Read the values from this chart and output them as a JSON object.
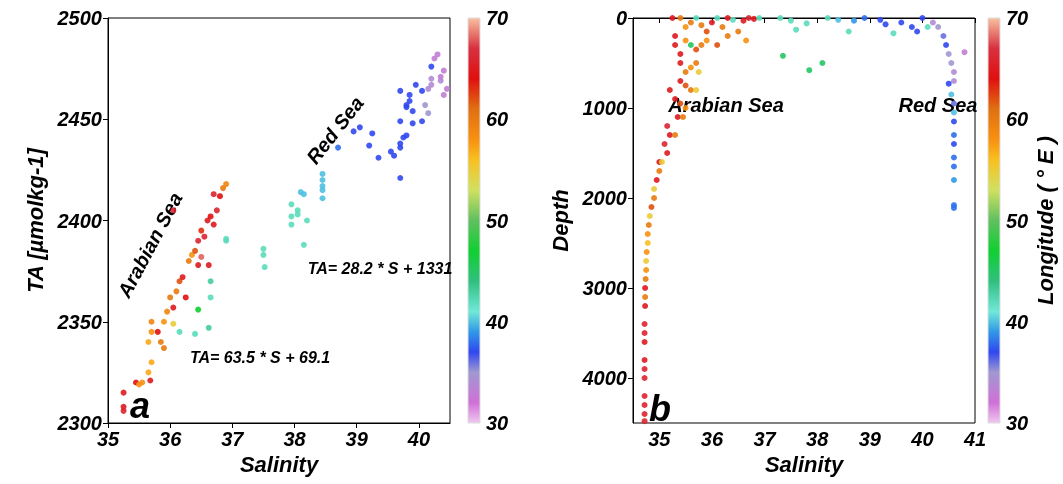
{
  "chart_data": [
    {
      "type": "scatter",
      "xlabel": "Salinity",
      "ylabel": "TA [µmolkg-1]",
      "xlim": [
        35,
        40.5
      ],
      "xticks": [
        35,
        36,
        37,
        38,
        39,
        40
      ],
      "ylim": [
        2300,
        2500
      ],
      "yticks": [
        2300,
        2350,
        2400,
        2450,
        2500
      ],
      "clim": [
        30,
        70
      ],
      "cticks": [
        30,
        40,
        50,
        60,
        70
      ],
      "marker": "circle",
      "annotations": [
        "Arabian Sea",
        "Red Sea",
        "TA= 28.2 * S + 1331",
        "TA= 63.5 * S + 69.1",
        "a"
      ],
      "series": [
        {
          "x": [
            35.25,
            35.25,
            35.25,
            35.45,
            35.5,
            35.55,
            35.65,
            35.7,
            35.68,
            35.65,
            35.7,
            35.7,
            35.8,
            35.85,
            35.9,
            35.95,
            35.9,
            36.0,
            36.05,
            36.1,
            36.15,
            36.2,
            36.25,
            36.3,
            36.35,
            36.4,
            36.45,
            36.45,
            36.5,
            36.55,
            36.6,
            36.65,
            36.7,
            36.75,
            36.8,
            36.85,
            36.9,
            36.7,
            36.62,
            36.05,
            36.5,
            36.9,
            36.9,
            36.65,
            36.65,
            36.62,
            36.4,
            36.15,
            36.45,
            36.05,
            37.5,
            37.5,
            37.52,
            37.95,
            37.95,
            37.95,
            38.05,
            38.05,
            38.15,
            38.2,
            38.1,
            38.15,
            38.45,
            38.45,
            38.45,
            38.45,
            38.45,
            38.7,
            38.95,
            39.05,
            39.2,
            39.25,
            39.35,
            39.55,
            39.6,
            39.7,
            39.7,
            39.7,
            39.7,
            39.7,
            39.75,
            39.8,
            39.8,
            39.8,
            39.85,
            39.85,
            39.9,
            39.9,
            39.95,
            40.05,
            40.05,
            40.1,
            40.15,
            40.15,
            40.2,
            40.2,
            40.2,
            40.25,
            40.3,
            40.35,
            40.35,
            40.4,
            40.4,
            40.45
          ],
          "values": [
            2315,
            2308,
            2306,
            2320,
            2319,
            2320,
            2325,
            2330,
            2321,
            2340,
            2345,
            2350,
            2345,
            2340,
            2350,
            2355,
            2337,
            2362,
            2357,
            2365,
            2370,
            2372,
            2362,
            2380,
            2383,
            2385,
            2378,
            2390,
            2395,
            2392,
            2400,
            2402,
            2398,
            2405,
            2412,
            2416,
            2418,
            2413,
            2378,
            2405,
            2382,
            2390,
            2391,
            2370,
            2362,
            2347,
            2344,
            2345,
            2356,
            2349,
            2386,
            2383,
            2377,
            2408,
            2402,
            2398,
            2405,
            2403,
            2388,
            2400,
            2414,
            2413,
            2423,
            2420,
            2415,
            2417,
            2411,
            2436,
            2444,
            2446,
            2437,
            2443,
            2431,
            2434,
            2432,
            2421,
            2436,
            2438,
            2449,
            2464,
            2441,
            2442,
            2456,
            2457,
            2459,
            2462,
            2454,
            2448,
            2467,
            2449,
            2464,
            2457,
            2453,
            2465,
            2467,
            2470,
            2476,
            2480,
            2482,
            2469,
            2471,
            2474,
            2462,
            2465
          ],
          "cvalues": [
            65,
            65,
            66,
            64,
            58,
            58,
            57,
            57,
            65,
            57,
            58,
            59,
            64,
            60,
            58,
            59,
            60,
            60,
            65,
            60,
            62,
            65,
            64,
            60,
            58,
            62,
            65,
            66,
            63,
            66,
            65,
            64,
            65,
            66,
            64,
            60,
            59,
            66,
            65,
            66,
            68,
            42,
            42,
            43,
            42,
            43,
            42,
            42,
            47,
            55,
            42,
            42,
            42,
            42,
            42,
            42,
            42,
            42,
            42,
            42,
            40,
            40,
            40,
            40,
            40,
            40,
            40,
            38,
            37,
            37,
            37,
            37,
            37,
            37,
            37,
            37,
            37,
            37,
            37,
            37,
            37,
            37,
            37,
            37,
            37,
            37,
            37,
            37,
            37,
            37,
            37,
            35,
            35,
            34,
            34,
            34,
            37,
            33,
            33,
            34,
            33,
            33,
            33,
            33
          ]
        }
      ]
    },
    {
      "type": "scatter",
      "xlabel": "Salinity",
      "ylabel": "Depth",
      "clabel": "Longitude ( ° E )",
      "xlim": [
        34.5,
        41
      ],
      "xticks": [
        35,
        36,
        37,
        38,
        39,
        40,
        41
      ],
      "ylim": [
        4500,
        0
      ],
      "yticks": [
        0,
        1000,
        2000,
        3000,
        4000
      ],
      "clim": [
        30,
        70
      ],
      "cticks": [
        30,
        40,
        50,
        60,
        70
      ],
      "marker": "circle",
      "annotations": [
        "Arabian Sea",
        "Red Sea",
        "b"
      ],
      "series": [
        {
          "x": [
            35.25,
            35.4,
            35.5,
            35.6,
            35.7,
            35.8,
            35.9,
            36.0,
            36.1,
            36.2,
            36.3,
            36.4,
            36.5,
            36.6,
            36.7,
            36.8,
            36.9,
            35.3,
            35.3,
            35.4,
            35.5,
            35.6,
            35.7,
            35.8,
            35.9,
            36.1,
            36.3,
            36.65,
            35.4,
            35.5,
            35.6,
            35.7,
            35.75,
            35.4,
            35.5,
            35.6,
            35.7,
            35.2,
            35.3,
            35.4,
            35.5,
            35.35,
            35.45,
            35.15,
            35.2,
            35.3,
            35.1,
            35.15,
            35.0,
            35.05,
            35.0,
            34.95,
            34.9,
            34.9,
            34.85,
            34.82,
            34.8,
            34.78,
            34.78,
            34.76,
            34.75,
            34.75,
            34.74,
            34.73,
            34.73,
            34.73,
            34.72,
            34.72,
            34.72,
            34.72,
            34.72,
            34.72,
            34.72,
            34.72,
            34.72,
            34.72,
            37.3,
            37.5,
            37.6,
            37.8,
            37.35,
            37.85,
            38.1,
            38.2,
            38.4,
            38.6,
            38.7,
            38.9,
            39.2,
            39.3,
            39.45,
            39.6,
            39.8,
            39.9,
            40.0,
            40.1,
            40.2,
            40.3,
            40.4,
            40.45,
            40.5,
            40.55,
            40.6,
            40.6,
            40.5,
            40.55,
            40.6,
            40.6,
            40.6,
            40.6,
            40.6,
            40.6,
            40.6,
            40.6,
            40.6,
            40.6,
            40.8
          ],
          "values": [
            0,
            0,
            100,
            50,
            0,
            80,
            150,
            50,
            0,
            100,
            0,
            20,
            150,
            30,
            0,
            10,
            0,
            200,
            300,
            400,
            250,
            300,
            350,
            300,
            250,
            300,
            200,
            250,
            500,
            600,
            550,
            500,
            600,
            700,
            750,
            800,
            800,
            800,
            900,
            950,
            1000,
            1100,
            1100,
            1200,
            1300,
            1300,
            1400,
            1500,
            1600,
            1600,
            1700,
            1800,
            1900,
            2000,
            2100,
            2200,
            2300,
            2400,
            2500,
            2600,
            2700,
            2800,
            2900,
            3000,
            3100,
            3200,
            3400,
            3500,
            3600,
            3800,
            3900,
            4000,
            4200,
            4300,
            4400,
            4480,
            0,
            30,
            130,
            60,
            420,
            580,
            500,
            0,
            20,
            150,
            30,
            0,
            20,
            70,
            170,
            50,
            100,
            150,
            0,
            100,
            50,
            100,
            200,
            300,
            400,
            500,
            600,
            700,
            730,
            850,
            950,
            1050,
            1150,
            1300,
            1400,
            1550,
            1650,
            1800,
            2080,
            2110,
            380
          ],
          "cvalues": [
            65,
            60,
            58,
            60,
            42,
            60,
            62,
            65,
            42,
            60,
            65,
            42,
            60,
            65,
            66,
            65,
            42,
            65,
            65,
            65,
            58,
            45,
            62,
            60,
            58,
            62,
            60,
            58,
            65,
            60,
            58,
            60,
            55,
            65,
            62,
            60,
            55,
            65,
            65,
            62,
            58,
            65,
            60,
            66,
            65,
            60,
            66,
            65,
            65,
            55,
            60,
            65,
            55,
            60,
            62,
            55,
            60,
            58,
            56,
            58,
            55,
            58,
            60,
            65,
            60,
            65,
            66,
            66,
            65,
            65,
            66,
            66,
            66,
            66,
            66,
            66,
            42,
            42,
            42,
            42,
            45,
            45,
            45,
            42,
            40,
            42,
            39,
            38,
            37,
            37,
            42,
            37,
            37,
            37,
            37,
            42,
            34,
            35,
            36,
            37,
            35,
            35,
            34,
            34,
            37,
            40,
            36,
            40,
            37,
            38,
            37,
            38,
            38,
            39,
            38,
            38,
            33
          ]
        }
      ]
    }
  ]
}
